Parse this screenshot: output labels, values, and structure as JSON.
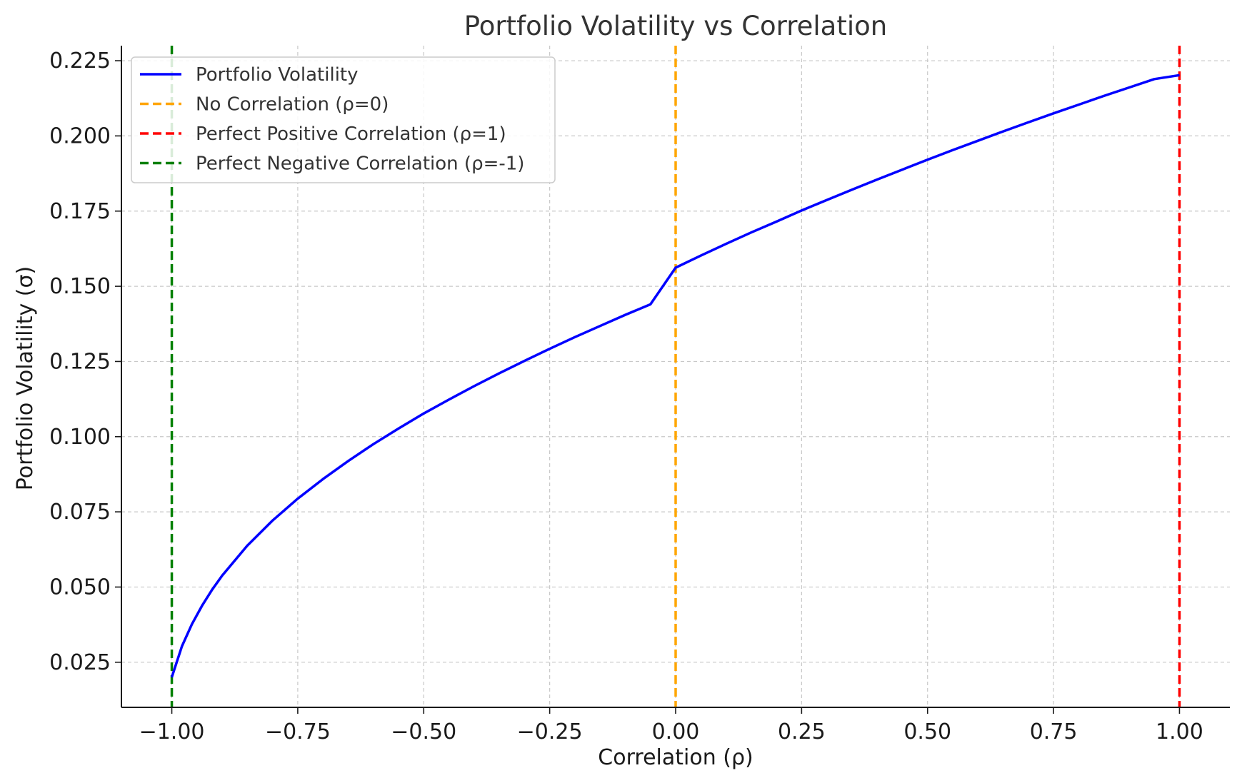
{
  "chart_data": {
    "type": "line",
    "title": "Portfolio Volatility vs Correlation",
    "xlabel": "Correlation (ρ)",
    "ylabel": "Portfolio Volatility (σ)",
    "xlim": [
      -1.1,
      1.1
    ],
    "ylim": [
      0.01,
      0.23
    ],
    "xticks": [
      -1.0,
      -0.75,
      -0.5,
      -0.25,
      0.0,
      0.25,
      0.5,
      0.75,
      1.0
    ],
    "xtick_labels": [
      "−1.00",
      "−0.75",
      "−0.50",
      "−0.25",
      "0.00",
      "0.25",
      "0.50",
      "0.75",
      "1.00"
    ],
    "yticks": [
      0.025,
      0.05,
      0.075,
      0.1,
      0.125,
      0.15,
      0.175,
      0.2,
      0.225
    ],
    "ytick_labels": [
      "0.025",
      "0.050",
      "0.075",
      "0.100",
      "0.125",
      "0.150",
      "0.175",
      "0.200",
      "0.225"
    ],
    "grid": true,
    "legend_position": "top-left",
    "series": [
      {
        "name": "Portfolio Volatility",
        "color": "#0000ff",
        "style": "solid",
        "x": [
          -1.0,
          -0.98,
          -0.96,
          -0.94,
          -0.92,
          -0.9,
          -0.85,
          -0.8,
          -0.75,
          -0.7,
          -0.65,
          -0.6,
          -0.55,
          -0.5,
          -0.45,
          -0.4,
          -0.35,
          -0.3,
          -0.25,
          -0.2,
          -0.15,
          -0.1,
          -0.05,
          0.0,
          0.05,
          0.1,
          0.15,
          0.2,
          0.25,
          0.3,
          0.35,
          0.4,
          0.45,
          0.5,
          0.55,
          0.6,
          0.65,
          0.7,
          0.75,
          0.8,
          0.85,
          0.9,
          0.95,
          1.0
        ],
        "y": [
          0.02,
          0.0303,
          0.0377,
          0.0438,
          0.0491,
          0.0538,
          0.0638,
          0.0721,
          0.0794,
          0.0859,
          0.0919,
          0.0975,
          0.1027,
          0.1077,
          0.1123,
          0.1168,
          0.1211,
          0.1252,
          0.1292,
          0.1331,
          0.1368,
          0.1405,
          0.144,
          0.1562,
          0.1602,
          0.1641,
          0.1679,
          0.1715,
          0.1752,
          0.1787,
          0.1821,
          0.1855,
          0.1888,
          0.1921,
          0.1953,
          0.1984,
          0.2015,
          0.2045,
          0.2075,
          0.2104,
          0.2133,
          0.2161,
          0.2189,
          0.2202
        ]
      },
      {
        "name": "No Correlation (ρ=0)",
        "color": "#ffa500",
        "style": "dashed",
        "vline_x": 0.0
      },
      {
        "name": "Perfect Positive Correlation (ρ=1)",
        "color": "#ff0000",
        "style": "dashed",
        "vline_x": 1.0
      },
      {
        "name": "Perfect Negative Correlation (ρ=-1)",
        "color": "#008000",
        "style": "dashed",
        "vline_x": -1.0
      }
    ]
  }
}
